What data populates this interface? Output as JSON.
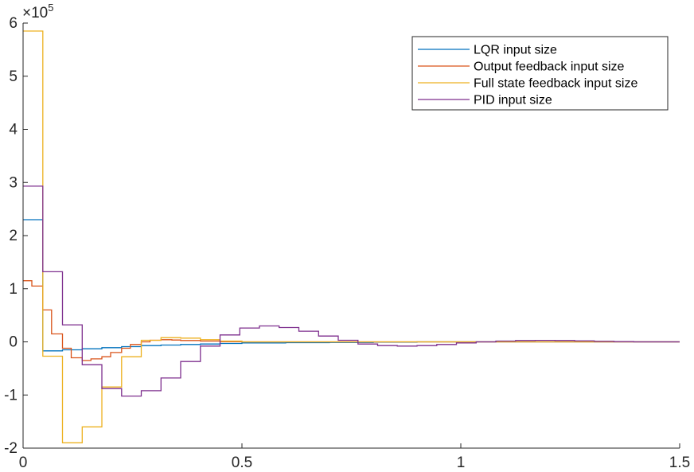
{
  "chart_data": {
    "type": "line",
    "step": true,
    "title": "",
    "xlabel": "",
    "ylabel": "",
    "y_exponent_label": "×10",
    "y_exponent_power": "5",
    "y_scale": 100000,
    "xlim": [
      0,
      1.5
    ],
    "ylim": [
      -200000,
      600000
    ],
    "x_ticks": [
      0,
      0.5,
      1,
      1.5
    ],
    "x_tick_labels": [
      "0",
      "0.5",
      "1",
      "1.5"
    ],
    "y_ticks": [
      -200000,
      -100000,
      0,
      100000,
      200000,
      300000,
      400000,
      500000,
      600000
    ],
    "y_tick_labels": [
      "-2",
      "-1",
      "0",
      "1",
      "2",
      "3",
      "4",
      "5",
      "6"
    ],
    "grid": false,
    "legend_position": "top-right",
    "series": [
      {
        "name": "LQR input size",
        "color": "#0072BD",
        "x": [
          0,
          0.045,
          0.09,
          0.135,
          0.18,
          0.225,
          0.27,
          0.315,
          0.36,
          0.405,
          0.45,
          0.5,
          0.6,
          0.7,
          0.8,
          0.9,
          1.0,
          1.1,
          1.2,
          1.3,
          1.4,
          1.5
        ],
        "y": [
          230000,
          -17000,
          -15000,
          -13000,
          -11000,
          -9000,
          -7000,
          -6000,
          -5000,
          -4000,
          -3000,
          -2000,
          -1500,
          -1000,
          -500,
          0,
          0,
          0,
          0,
          0,
          0,
          0
        ]
      },
      {
        "name": "Output feedback input size",
        "color": "#D95319",
        "x": [
          0,
          0.02,
          0.045,
          0.065,
          0.09,
          0.11,
          0.135,
          0.155,
          0.18,
          0.2,
          0.225,
          0.245,
          0.27,
          0.29,
          0.315,
          0.34,
          0.36,
          0.405,
          0.45,
          0.5,
          0.6,
          0.7,
          0.8,
          0.9,
          1.0,
          1.1,
          1.2,
          1.3,
          1.4,
          1.5
        ],
        "y": [
          115000,
          105000,
          60000,
          15000,
          -12000,
          -30000,
          -35000,
          -32000,
          -28000,
          -20000,
          -12000,
          -5000,
          0,
          3000,
          4000,
          3500,
          2500,
          1500,
          500,
          0,
          0,
          0,
          0,
          0,
          0,
          0,
          0,
          0,
          0,
          0
        ]
      },
      {
        "name": "Full state feedback input size",
        "color": "#EDB120",
        "x": [
          0,
          0.045,
          0.09,
          0.135,
          0.18,
          0.225,
          0.27,
          0.315,
          0.36,
          0.405,
          0.45,
          0.5,
          0.6,
          0.7,
          0.8,
          0.9,
          1.0,
          1.1,
          1.2,
          1.3,
          1.4,
          1.5
        ],
        "y": [
          585000,
          -27000,
          -190000,
          -160000,
          -85000,
          -28000,
          3000,
          8000,
          7000,
          4000,
          1500,
          0,
          0,
          0,
          0,
          0,
          0,
          0,
          0,
          0,
          0,
          0
        ]
      },
      {
        "name": "PID input size",
        "color": "#7E2F8E",
        "x": [
          0,
          0.045,
          0.09,
          0.135,
          0.18,
          0.225,
          0.27,
          0.315,
          0.36,
          0.405,
          0.45,
          0.495,
          0.54,
          0.585,
          0.63,
          0.675,
          0.72,
          0.765,
          0.81,
          0.855,
          0.9,
          0.945,
          0.99,
          1.035,
          1.08,
          1.125,
          1.17,
          1.215,
          1.26,
          1.305,
          1.35,
          1.395,
          1.44,
          1.485
        ],
        "y": [
          293000,
          132000,
          32000,
          -43000,
          -88000,
          -102000,
          -92000,
          -68000,
          -37000,
          -8000,
          13000,
          26000,
          30000,
          27000,
          20000,
          11000,
          3000,
          -4000,
          -7000,
          -8000,
          -7000,
          -5000,
          -2000,
          0,
          1500,
          2500,
          2800,
          2500,
          1800,
          1000,
          500,
          0,
          0,
          0
        ]
      }
    ]
  }
}
